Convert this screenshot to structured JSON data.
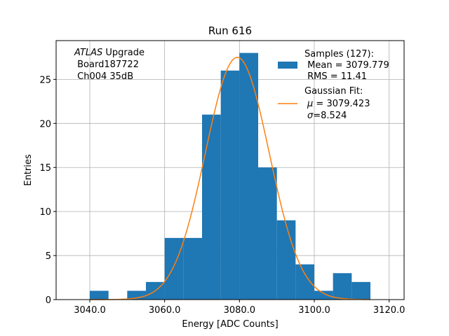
{
  "chart_data": {
    "type": "bar",
    "title": "Run 616",
    "xlabel": "Energy [ADC Counts]",
    "ylabel": "Entries",
    "xlim": [
      3031,
      3124
    ],
    "ylim": [
      0,
      29.4
    ],
    "xticks": [
      3040,
      3060,
      3080,
      3100,
      3120
    ],
    "xtick_labels": [
      "3040.0",
      "3060.0",
      "3080.0",
      "3100.0",
      "3120.0"
    ],
    "yticks": [
      0,
      5,
      10,
      15,
      20,
      25
    ],
    "ytick_labels": [
      "0",
      "5",
      "10",
      "15",
      "20",
      "25"
    ],
    "grid": true,
    "annotation_lines": [
      "ATLAS",
      " Upgrade",
      " Board187722",
      " Ch004 35dB"
    ],
    "histogram": {
      "bin_edges": [
        3040,
        3045,
        3050,
        3055,
        3060,
        3065,
        3070,
        3075,
        3080,
        3085,
        3090,
        3095,
        3100,
        3105,
        3110,
        3115
      ],
      "counts": [
        1,
        0,
        1,
        2,
        7,
        7,
        21,
        26,
        28,
        15,
        9,
        4,
        1,
        3,
        2
      ],
      "color": "#1f77b4"
    },
    "fit": {
      "mu": 3079.423,
      "sigma": 8.524,
      "amplitude": 27.5,
      "x_range": [
        3040,
        3115
      ],
      "color": "#ff7f0e"
    },
    "legend": {
      "placement": "top-right",
      "samples_label": "Samples (127):",
      "samples_mean": " Mean = 3079.779",
      "samples_rms": " RMS = 11.41",
      "fit_label": "Gaussian Fit:",
      "fit_mu": " = 3079.423",
      "fit_sigma": "=8.524",
      "mu_symbol": "μ",
      "sigma_symbol": "σ"
    }
  }
}
